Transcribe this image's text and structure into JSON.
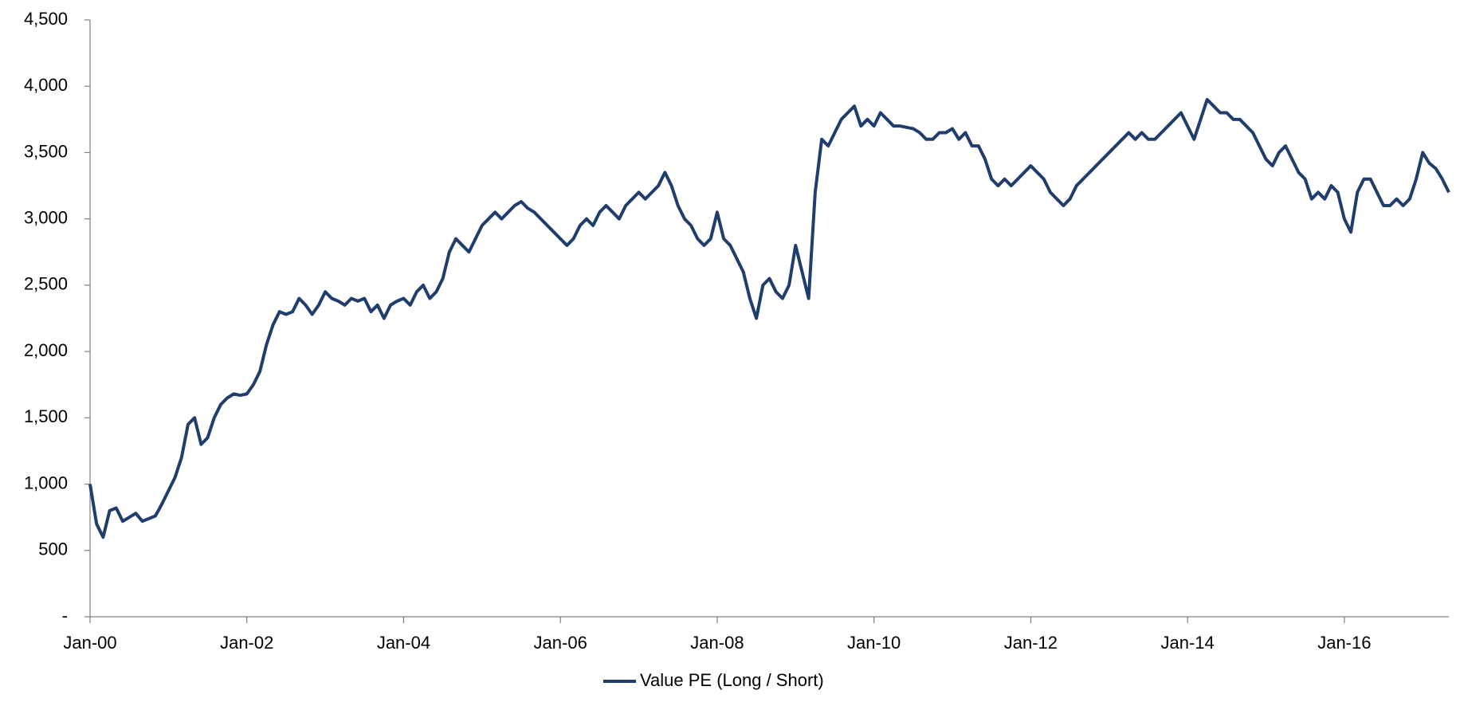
{
  "chart_data": {
    "type": "line",
    "x": [
      "2000-01",
      "2000-02",
      "2000-03",
      "2000-04",
      "2000-05",
      "2000-06",
      "2000-07",
      "2000-08",
      "2000-09",
      "2000-10",
      "2000-11",
      "2000-12",
      "2001-01",
      "2001-02",
      "2001-03",
      "2001-04",
      "2001-05",
      "2001-06",
      "2001-07",
      "2001-08",
      "2001-09",
      "2001-10",
      "2001-11",
      "2001-12",
      "2002-01",
      "2002-02",
      "2002-03",
      "2002-04",
      "2002-05",
      "2002-06",
      "2002-07",
      "2002-08",
      "2002-09",
      "2002-10",
      "2002-11",
      "2002-12",
      "2003-01",
      "2003-02",
      "2003-03",
      "2003-04",
      "2003-05",
      "2003-06",
      "2003-07",
      "2003-08",
      "2003-09",
      "2003-10",
      "2003-11",
      "2003-12",
      "2004-01",
      "2004-02",
      "2004-03",
      "2004-04",
      "2004-05",
      "2004-06",
      "2004-07",
      "2004-08",
      "2004-09",
      "2004-10",
      "2004-11",
      "2004-12",
      "2005-01",
      "2005-02",
      "2005-03",
      "2005-04",
      "2005-05",
      "2005-06",
      "2005-07",
      "2005-08",
      "2005-09",
      "2005-10",
      "2005-11",
      "2005-12",
      "2006-01",
      "2006-02",
      "2006-03",
      "2006-04",
      "2006-05",
      "2006-06",
      "2006-07",
      "2006-08",
      "2006-09",
      "2006-10",
      "2006-11",
      "2006-12",
      "2007-01",
      "2007-02",
      "2007-03",
      "2007-04",
      "2007-05",
      "2007-06",
      "2007-07",
      "2007-08",
      "2007-09",
      "2007-10",
      "2007-11",
      "2007-12",
      "2008-01",
      "2008-02",
      "2008-03",
      "2008-04",
      "2008-05",
      "2008-06",
      "2008-07",
      "2008-08",
      "2008-09",
      "2008-10",
      "2008-11",
      "2008-12",
      "2009-01",
      "2009-02",
      "2009-03",
      "2009-04",
      "2009-05",
      "2009-06",
      "2009-07",
      "2009-08",
      "2009-09",
      "2009-10",
      "2009-11",
      "2009-12",
      "2010-01",
      "2010-02",
      "2010-03",
      "2010-04",
      "2010-05",
      "2010-06",
      "2010-07",
      "2010-08",
      "2010-09",
      "2010-10",
      "2010-11",
      "2010-12",
      "2011-01",
      "2011-02",
      "2011-03",
      "2011-04",
      "2011-05",
      "2011-06",
      "2011-07",
      "2011-08",
      "2011-09",
      "2011-10",
      "2011-11",
      "2011-12",
      "2012-01",
      "2012-02",
      "2012-03",
      "2012-04",
      "2012-05",
      "2012-06",
      "2012-07",
      "2012-08",
      "2012-09",
      "2012-10",
      "2012-11",
      "2012-12",
      "2013-01",
      "2013-02",
      "2013-03",
      "2013-04",
      "2013-05",
      "2013-06",
      "2013-07",
      "2013-08",
      "2013-09",
      "2013-10",
      "2013-11",
      "2013-12",
      "2014-01",
      "2014-02",
      "2014-03",
      "2014-04",
      "2014-05",
      "2014-06",
      "2014-07",
      "2014-08",
      "2014-09",
      "2014-10",
      "2014-11",
      "2014-12",
      "2015-01",
      "2015-02",
      "2015-03",
      "2015-04",
      "2015-05",
      "2015-06",
      "2015-07",
      "2015-08",
      "2015-09",
      "2015-10",
      "2015-11",
      "2015-12",
      "2016-01",
      "2016-02",
      "2016-03",
      "2016-04",
      "2016-05",
      "2016-06",
      "2016-07",
      "2016-08",
      "2016-09",
      "2016-10",
      "2016-11",
      "2016-12",
      "2017-01",
      "2017-02",
      "2017-03",
      "2017-04",
      "2017-05"
    ],
    "series": [
      {
        "name": "Value PE (Long / Short)",
        "color": "#1f3d6d",
        "values": [
          1000,
          700,
          600,
          800,
          820,
          720,
          750,
          780,
          720,
          740,
          760,
          850,
          950,
          1050,
          1200,
          1450,
          1500,
          1300,
          1350,
          1500,
          1600,
          1650,
          1680,
          1670,
          1680,
          1750,
          1850,
          2050,
          2200,
          2300,
          2280,
          2300,
          2400,
          2350,
          2280,
          2350,
          2450,
          2400,
          2380,
          2350,
          2400,
          2380,
          2400,
          2300,
          2350,
          2250,
          2350,
          2380,
          2400,
          2350,
          2450,
          2500,
          2400,
          2450,
          2550,
          2750,
          2850,
          2800,
          2750,
          2850,
          2950,
          3000,
          3050,
          3000,
          3050,
          3100,
          3130,
          3080,
          3050,
          3000,
          2950,
          2900,
          2850,
          2800,
          2850,
          2950,
          3000,
          2950,
          3050,
          3100,
          3050,
          3000,
          3100,
          3150,
          3200,
          3150,
          3200,
          3250,
          3350,
          3250,
          3100,
          3000,
          2950,
          2850,
          2800,
          2850,
          3050,
          2850,
          2800,
          2700,
          2600,
          2400,
          2250,
          2500,
          2550,
          2450,
          2400,
          2500,
          2800,
          2600,
          2400,
          3200,
          3600,
          3550,
          3650,
          3750,
          3800,
          3850,
          3700,
          3750,
          3700,
          3800,
          3750,
          3700,
          3700,
          3690,
          3680,
          3650,
          3600,
          3600,
          3650,
          3650,
          3680,
          3600,
          3650,
          3550,
          3550,
          3450,
          3300,
          3250,
          3300,
          3250,
          3300,
          3350,
          3400,
          3350,
          3300,
          3200,
          3150,
          3100,
          3150,
          3250,
          3300,
          3350,
          3400,
          3450,
          3500,
          3550,
          3600,
          3650,
          3600,
          3650,
          3600,
          3600,
          3650,
          3700,
          3750,
          3800,
          3700,
          3600,
          3750,
          3900,
          3850,
          3800,
          3800,
          3750,
          3750,
          3700,
          3650,
          3550,
          3450,
          3400,
          3500,
          3550,
          3450,
          3350,
          3300,
          3150,
          3200,
          3150,
          3250,
          3200,
          3000,
          2900,
          3200,
          3300,
          3300,
          3200,
          3100,
          3100,
          3150,
          3100,
          3150,
          3300,
          3500,
          3420,
          3380,
          3300,
          3200
        ]
      }
    ],
    "xlim": [
      "2000-01",
      "2017-05"
    ],
    "xticks": [
      {
        "value": "2000-01",
        "label": "Jan-00"
      },
      {
        "value": "2002-01",
        "label": "Jan-02"
      },
      {
        "value": "2004-01",
        "label": "Jan-04"
      },
      {
        "value": "2006-01",
        "label": "Jan-06"
      },
      {
        "value": "2008-01",
        "label": "Jan-08"
      },
      {
        "value": "2010-01",
        "label": "Jan-10"
      },
      {
        "value": "2012-01",
        "label": "Jan-12"
      },
      {
        "value": "2014-01",
        "label": "Jan-14"
      },
      {
        "value": "2016-01",
        "label": "Jan-16"
      }
    ],
    "ylim": [
      0,
      4500
    ],
    "yticks": [
      {
        "value": 0,
        "label": "-"
      },
      500,
      {
        "value": 1000,
        "label": "1,000"
      },
      {
        "value": 1500,
        "label": "1,500"
      },
      {
        "value": 2000,
        "label": "2,000"
      },
      {
        "value": 2500,
        "label": "2,500"
      },
      {
        "value": 3000,
        "label": "3,000"
      },
      {
        "value": 3500,
        "label": "3,500"
      },
      {
        "value": 4000,
        "label": "4,000"
      },
      {
        "value": 4500,
        "label": "4,500"
      }
    ],
    "grid": false,
    "legend": "bottom"
  }
}
